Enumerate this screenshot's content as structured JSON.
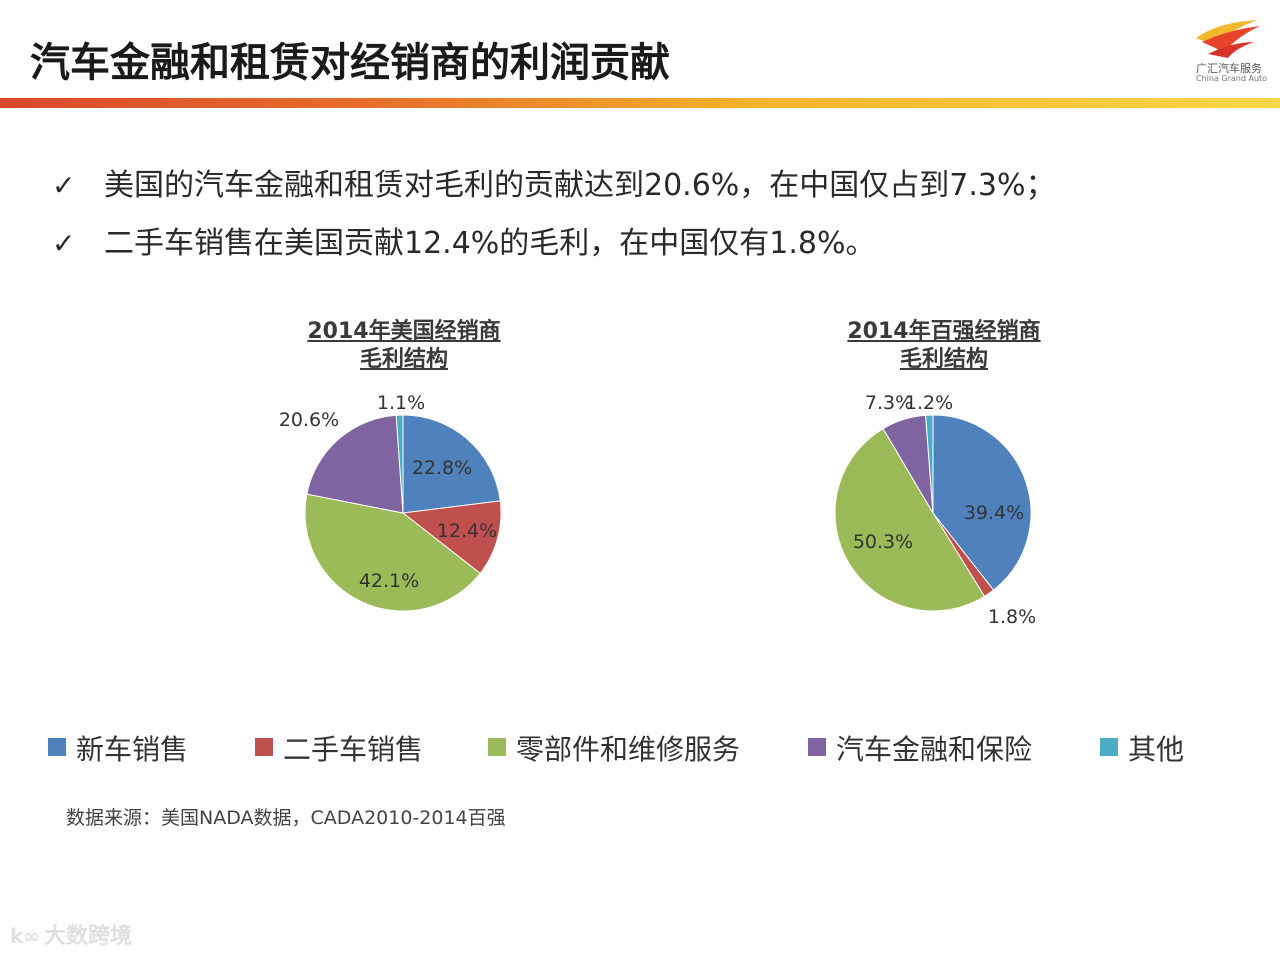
{
  "slide": {
    "title": "汽车金融和租赁对经销商的利润贡献",
    "logo_cn": "广汇汽车服务",
    "logo_en": "China Grand Auto",
    "bullets": [
      "美国的汽车金融和租赁对毛利的贡献达到20.6%，在中国仅占到7.3%；",
      "二手车销售在美国贡献12.4%的毛利，在中国仅有1.8%。"
    ],
    "check_symbol": "✓",
    "source": "数据来源：美国NADA数据，CADA2010-2014百强",
    "watermark": "大数跨境",
    "watermark_logo": "k∞"
  },
  "colors": {
    "new": "#4f81bd",
    "used": "#c0504d",
    "parts": "#9bbb59",
    "finance": "#8064a2",
    "other": "#4bacc6"
  },
  "chart_data": [
    {
      "type": "pie",
      "title_lines": [
        "2014年美国经销商",
        "毛利结构"
      ],
      "categories": [
        "新车销售",
        "二手车销售",
        "零部件和维修服务",
        "汽车金融和保险",
        "其他"
      ],
      "values": [
        22.8,
        12.4,
        42.1,
        20.6,
        1.1
      ],
      "labels": [
        "22.8%",
        "12.4%",
        "42.1%",
        "20.6%",
        "1.1%"
      ]
    },
    {
      "type": "pie",
      "title_lines": [
        "2014年百强经销商",
        "毛利结构"
      ],
      "categories": [
        "新车销售",
        "二手车销售",
        "零部件和维修服务",
        "汽车金融和保险",
        "其他"
      ],
      "values": [
        39.4,
        1.8,
        50.3,
        7.3,
        1.2
      ],
      "labels": [
        "39.4%",
        "1.8%",
        "50.3%",
        "7.3%",
        "1.2%"
      ]
    }
  ],
  "legend": [
    {
      "label": "新车销售",
      "key": "new"
    },
    {
      "label": "二手车销售",
      "key": "used"
    },
    {
      "label": "零部件和维修服务",
      "key": "parts"
    },
    {
      "label": "汽车金融和保险",
      "key": "finance"
    },
    {
      "label": "其他",
      "key": "other"
    }
  ]
}
